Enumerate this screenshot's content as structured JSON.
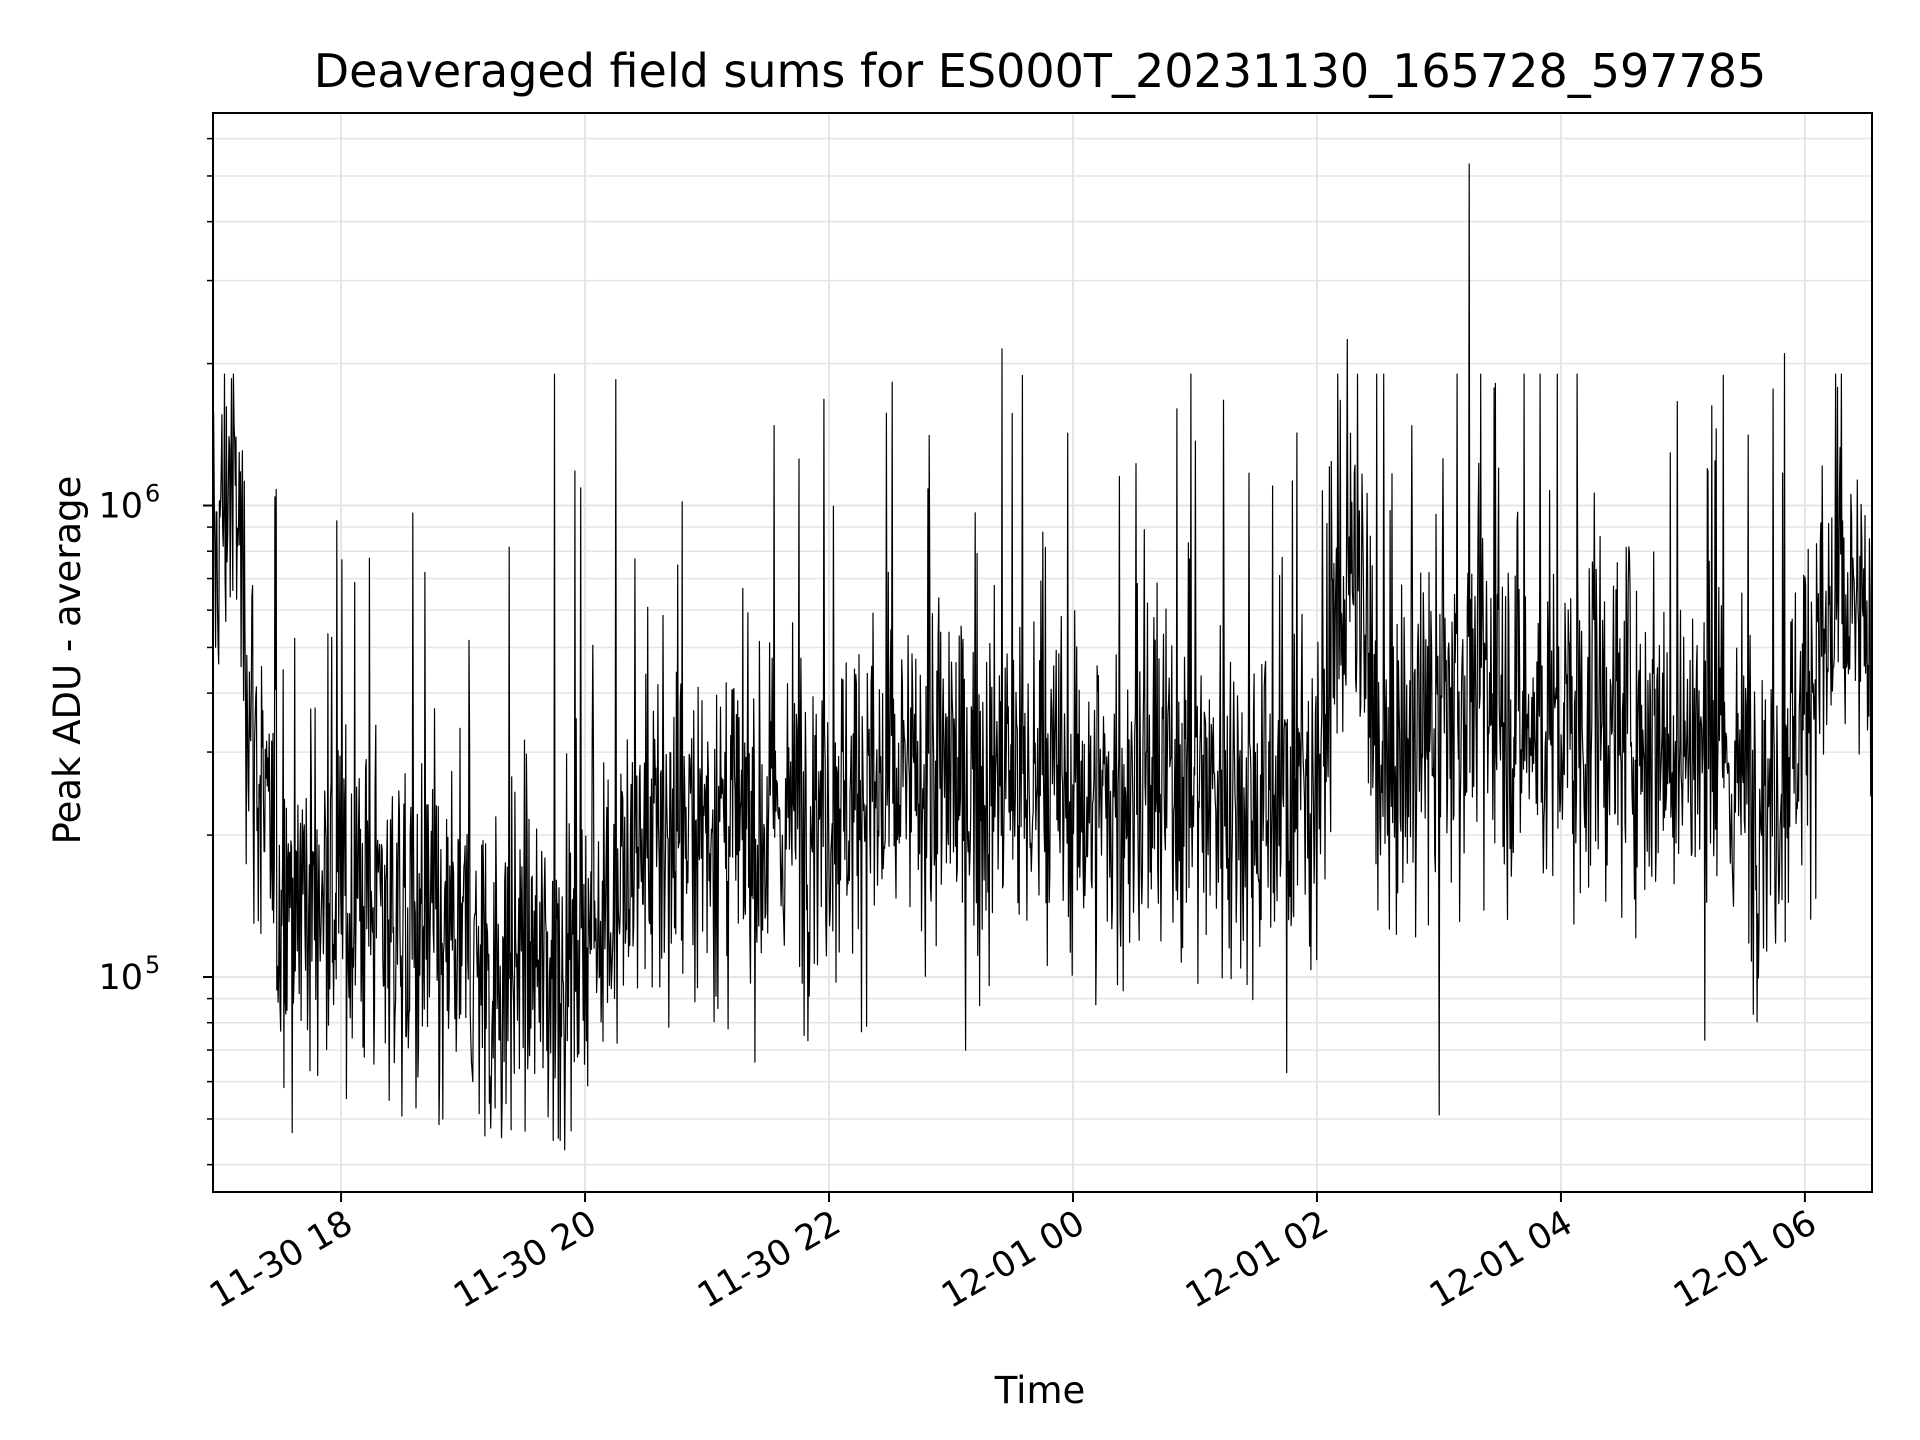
{
  "chart_data": {
    "type": "line",
    "title": "Deaveraged field sums for ES000T_20231130_165728_597785",
    "xlabel": "Time",
    "ylabel": "Peak ADU - average",
    "y_scale": "log",
    "ylim": [
      35000,
      6800000
    ],
    "xlim": [
      "2023-11-30 16:57",
      "2023-12-01 06:33"
    ],
    "grid": true,
    "line_color": "#000000",
    "grid_color": "#e5e5e5",
    "x_ticks": [
      {
        "value": "2023-11-30 18:00",
        "label": "11-30 18"
      },
      {
        "value": "2023-11-30 20:00",
        "label": "11-30 20"
      },
      {
        "value": "2023-11-30 22:00",
        "label": "11-30 22"
      },
      {
        "value": "2023-12-01 00:00",
        "label": "12-01 00"
      },
      {
        "value": "2023-12-01 02:00",
        "label": "12-01 02"
      },
      {
        "value": "2023-12-01 04:00",
        "label": "12-01 04"
      },
      {
        "value": "2023-12-01 06:00",
        "label": "12-01 06"
      }
    ],
    "y_ticks": [
      {
        "value": 100000,
        "base": "10",
        "exp": "5"
      },
      {
        "value": 1000000,
        "base": "10",
        "exp": "6"
      }
    ],
    "series": [
      {
        "x": [
          "2023-11-30 16:57",
          "2023-11-30 17:05",
          "2023-11-30 17:10",
          "2023-11-30 17:15",
          "2023-11-30 17:20",
          "2023-11-30 17:25",
          "2023-11-30 17:30",
          "2023-11-30 17:35",
          "2023-11-30 17:45",
          "2023-11-30 18:00",
          "2023-11-30 18:15",
          "2023-11-30 18:30",
          "2023-11-30 18:45",
          "2023-11-30 19:00",
          "2023-11-30 19:15",
          "2023-11-30 19:30",
          "2023-11-30 19:45",
          "2023-11-30 20:00",
          "2023-11-30 20:15",
          "2023-11-30 20:30",
          "2023-11-30 20:45",
          "2023-11-30 21:00",
          "2023-11-30 21:15",
          "2023-11-30 21:30",
          "2023-11-30 21:45",
          "2023-11-30 22:00",
          "2023-11-30 22:15",
          "2023-11-30 22:30",
          "2023-11-30 22:45",
          "2023-11-30 23:00",
          "2023-11-30 23:15",
          "2023-11-30 23:30",
          "2023-11-30 23:45",
          "2023-12-01 00:00",
          "2023-12-01 00:15",
          "2023-12-01 00:30",
          "2023-12-01 00:45",
          "2023-12-01 01:00",
          "2023-12-01 01:15",
          "2023-12-01 01:30",
          "2023-12-01 01:45",
          "2023-12-01 02:00",
          "2023-12-01 02:10",
          "2023-12-01 02:20",
          "2023-12-01 02:30",
          "2023-12-01 02:45",
          "2023-12-01 03:00",
          "2023-12-01 03:10",
          "2023-12-01 03:15",
          "2023-12-01 03:30",
          "2023-12-01 03:45",
          "2023-12-01 04:00",
          "2023-12-01 04:15",
          "2023-12-01 04:30",
          "2023-12-01 04:45",
          "2023-12-01 05:00",
          "2023-12-01 05:15",
          "2023-12-01 05:30",
          "2023-12-01 05:45",
          "2023-12-01 06:00",
          "2023-12-01 06:15",
          "2023-12-01 06:33"
        ],
        "y": [
          700000,
          1200000,
          900000,
          400000,
          250000,
          180000,
          140000,
          160000,
          150000,
          140000,
          150000,
          130000,
          120000,
          110000,
          100000,
          110000,
          100000,
          130000,
          150000,
          180000,
          200000,
          220000,
          200000,
          210000,
          230000,
          240000,
          250000,
          240000,
          260000,
          270000,
          250000,
          260000,
          240000,
          250000,
          230000,
          240000,
          250000,
          260000,
          250000,
          240000,
          230000,
          280000,
          600000,
          700000,
          280000,
          300000,
          350000,
          400000,
          420000,
          380000,
          340000,
          330000,
          350000,
          360000,
          340000,
          320000,
          280000,
          260000,
          250000,
          400000,
          600000,
          500000
        ]
      }
    ],
    "spikes": [
      {
        "x": "2023-12-01 03:15",
        "y": 5300000
      },
      {
        "x": "2023-12-01 02:15",
        "y": 2250000
      },
      {
        "x": "2023-11-30 23:25",
        "y": 2150000
      },
      {
        "x": "2023-12-01 05:50",
        "y": 2100000
      },
      {
        "x": "2023-11-30 19:45",
        "y": 1900000
      },
      {
        "x": "2023-11-30 20:15",
        "y": 1850000
      },
      {
        "x": "2023-11-30 19:50",
        "y": 43000
      },
      {
        "x": "2023-11-30 18:50",
        "y": 50000
      },
      {
        "x": "2023-12-01 03:00",
        "y": 51000
      }
    ]
  }
}
